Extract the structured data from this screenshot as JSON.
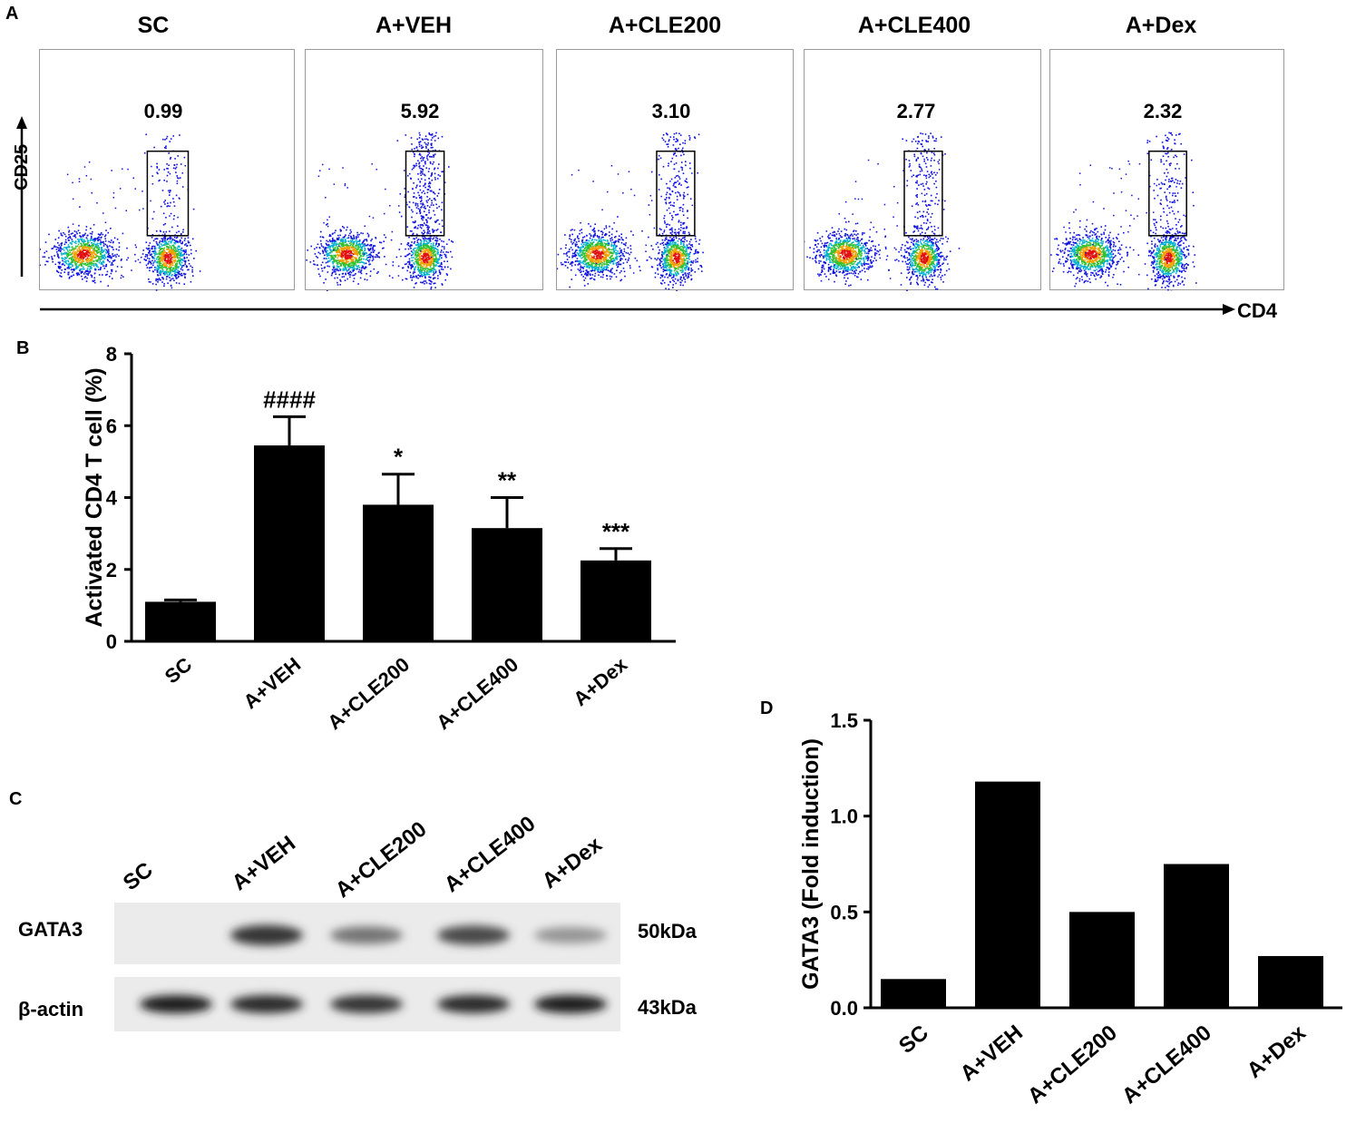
{
  "panel_letters": {
    "a": "A",
    "b": "B",
    "c": "C",
    "d": "D"
  },
  "flow": {
    "y_axis_label": "CD25",
    "x_axis_label": "CD4",
    "groups": [
      "SC",
      "A+VEH",
      "A+CLE200",
      "A+CLE400",
      "A+Dex"
    ],
    "gate_percent": [
      "0.99",
      "5.92",
      "3.10",
      "2.77",
      "2.32"
    ]
  },
  "chart_data": [
    {
      "type": "bar",
      "panel": "B",
      "categories": [
        "SC",
        "A+VEH",
        "A+CLE200",
        "A+CLE400",
        "A+Dex"
      ],
      "values": [
        1.1,
        5.45,
        3.8,
        3.15,
        2.25
      ],
      "error": [
        0.05,
        0.8,
        0.85,
        0.85,
        0.33
      ],
      "annotations": [
        "",
        "####",
        "*",
        "**",
        "***"
      ],
      "ylabel": "Activated CD4 T cell (%)",
      "ylim": [
        0,
        8
      ],
      "yticks": [
        0,
        2,
        4,
        6,
        8
      ],
      "colors": {
        "bar": "#000000"
      }
    },
    {
      "type": "bar",
      "panel": "D",
      "categories": [
        "SC",
        "A+VEH",
        "A+CLE200",
        "A+CLE400",
        "A+Dex"
      ],
      "values": [
        0.15,
        1.18,
        0.5,
        0.75,
        0.27
      ],
      "ylabel": "GATA3 (Fold induction)",
      "ylim": [
        0,
        1.5
      ],
      "yticks": [
        "0.0",
        "0.5",
        "1.0",
        "1.5"
      ],
      "colors": {
        "bar": "#000000"
      }
    }
  ],
  "blot": {
    "lanes": [
      "SC",
      "A+VEH",
      "A+CLE200",
      "A+CLE400",
      "A+Dex"
    ],
    "rows": [
      {
        "label": "GATA3",
        "kda": "50kDa",
        "intensity": [
          0.0,
          0.85,
          0.55,
          0.75,
          0.4
        ]
      },
      {
        "label": "β-actin",
        "kda": "43kDa",
        "intensity": [
          0.95,
          0.9,
          0.85,
          0.9,
          0.95
        ]
      }
    ]
  }
}
